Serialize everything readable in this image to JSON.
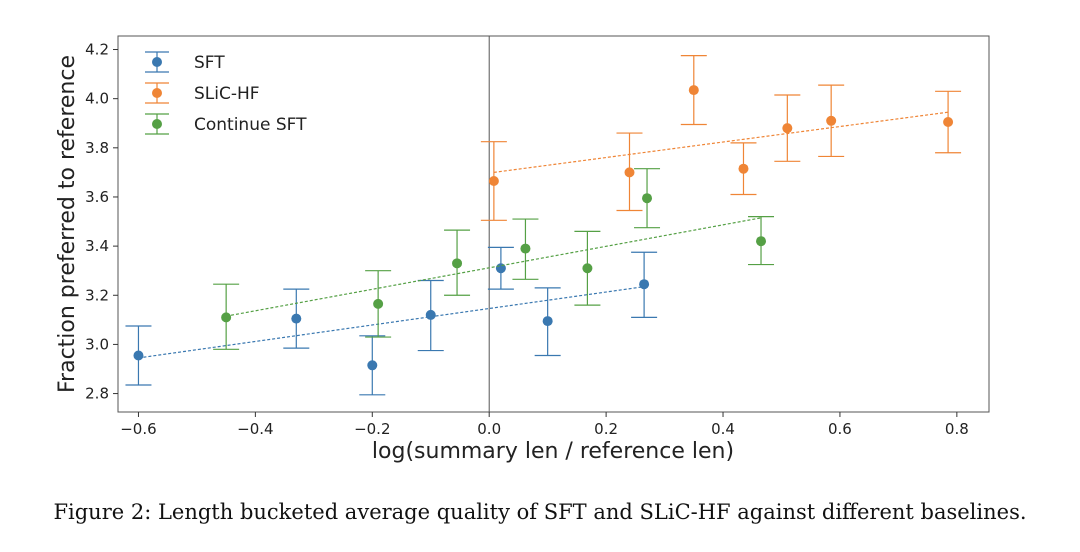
{
  "chart_data": {
    "type": "scatter",
    "title": "",
    "xlabel": "log(summary len / reference len)",
    "ylabel": "Fraction preferred to reference",
    "xlim": [
      -0.635,
      0.855
    ],
    "ylim": [
      2.725,
      4.255
    ],
    "xticks": [
      -0.6,
      -0.4,
      -0.2,
      0.0,
      0.2,
      0.4,
      0.6,
      0.8
    ],
    "xtick_labels": [
      "−0.6",
      "−0.4",
      "−0.2",
      "0.0",
      "0.2",
      "0.4",
      "0.6",
      "0.8"
    ],
    "yticks": [
      2.8,
      3.0,
      3.2,
      3.4,
      3.6,
      3.8,
      4.0,
      4.2
    ],
    "ytick_labels": [
      "2.8",
      "3.0",
      "3.2",
      "3.4",
      "3.6",
      "3.8",
      "4.0",
      "4.2"
    ],
    "vline_x": 0.0,
    "legend_position": "top-left",
    "series": [
      {
        "name": "SFT",
        "color": "#3a78b0",
        "points": [
          {
            "x": -0.6,
            "y": 2.955,
            "lo": 2.835,
            "hi": 3.075
          },
          {
            "x": -0.33,
            "y": 3.105,
            "lo": 2.985,
            "hi": 3.225
          },
          {
            "x": -0.2,
            "y": 2.915,
            "lo": 2.795,
            "hi": 3.035
          },
          {
            "x": -0.1,
            "y": 3.12,
            "lo": 2.975,
            "hi": 3.26
          },
          {
            "x": 0.02,
            "y": 3.31,
            "lo": 3.225,
            "hi": 3.395
          },
          {
            "x": 0.1,
            "y": 3.095,
            "lo": 2.955,
            "hi": 3.23
          },
          {
            "x": 0.265,
            "y": 3.245,
            "lo": 3.11,
            "hi": 3.375
          }
        ],
        "trend": {
          "x0": -0.6,
          "y0": 2.945,
          "x1": 0.265,
          "y1": 3.235
        }
      },
      {
        "name": "SLiC-HF",
        "color": "#ef8536",
        "points": [
          {
            "x": 0.008,
            "y": 3.665,
            "lo": 3.505,
            "hi": 3.825
          },
          {
            "x": 0.24,
            "y": 3.7,
            "lo": 3.545,
            "hi": 3.86
          },
          {
            "x": 0.35,
            "y": 4.035,
            "lo": 3.895,
            "hi": 4.175
          },
          {
            "x": 0.435,
            "y": 3.715,
            "lo": 3.61,
            "hi": 3.82
          },
          {
            "x": 0.51,
            "y": 3.88,
            "lo": 3.745,
            "hi": 4.015
          },
          {
            "x": 0.585,
            "y": 3.91,
            "lo": 3.765,
            "hi": 4.055
          },
          {
            "x": 0.785,
            "y": 3.905,
            "lo": 3.78,
            "hi": 4.03
          }
        ],
        "trend": {
          "x0": 0.008,
          "y0": 3.7,
          "x1": 0.785,
          "y1": 3.945
        }
      },
      {
        "name": "Continue SFT",
        "color": "#55a045",
        "points": [
          {
            "x": -0.45,
            "y": 3.11,
            "lo": 2.98,
            "hi": 3.245
          },
          {
            "x": -0.19,
            "y": 3.165,
            "lo": 3.03,
            "hi": 3.3
          },
          {
            "x": -0.055,
            "y": 3.33,
            "lo": 3.2,
            "hi": 3.465
          },
          {
            "x": 0.062,
            "y": 3.39,
            "lo": 3.265,
            "hi": 3.51
          },
          {
            "x": 0.168,
            "y": 3.31,
            "lo": 3.16,
            "hi": 3.46
          },
          {
            "x": 0.27,
            "y": 3.595,
            "lo": 3.475,
            "hi": 3.715
          },
          {
            "x": 0.465,
            "y": 3.42,
            "lo": 3.325,
            "hi": 3.52
          }
        ],
        "trend": {
          "x0": -0.45,
          "y0": 3.115,
          "x1": 0.465,
          "y1": 3.515
        }
      }
    ]
  },
  "caption": "Figure 2: Length bucketed average quality of SFT and SLiC-HF against different baselines."
}
